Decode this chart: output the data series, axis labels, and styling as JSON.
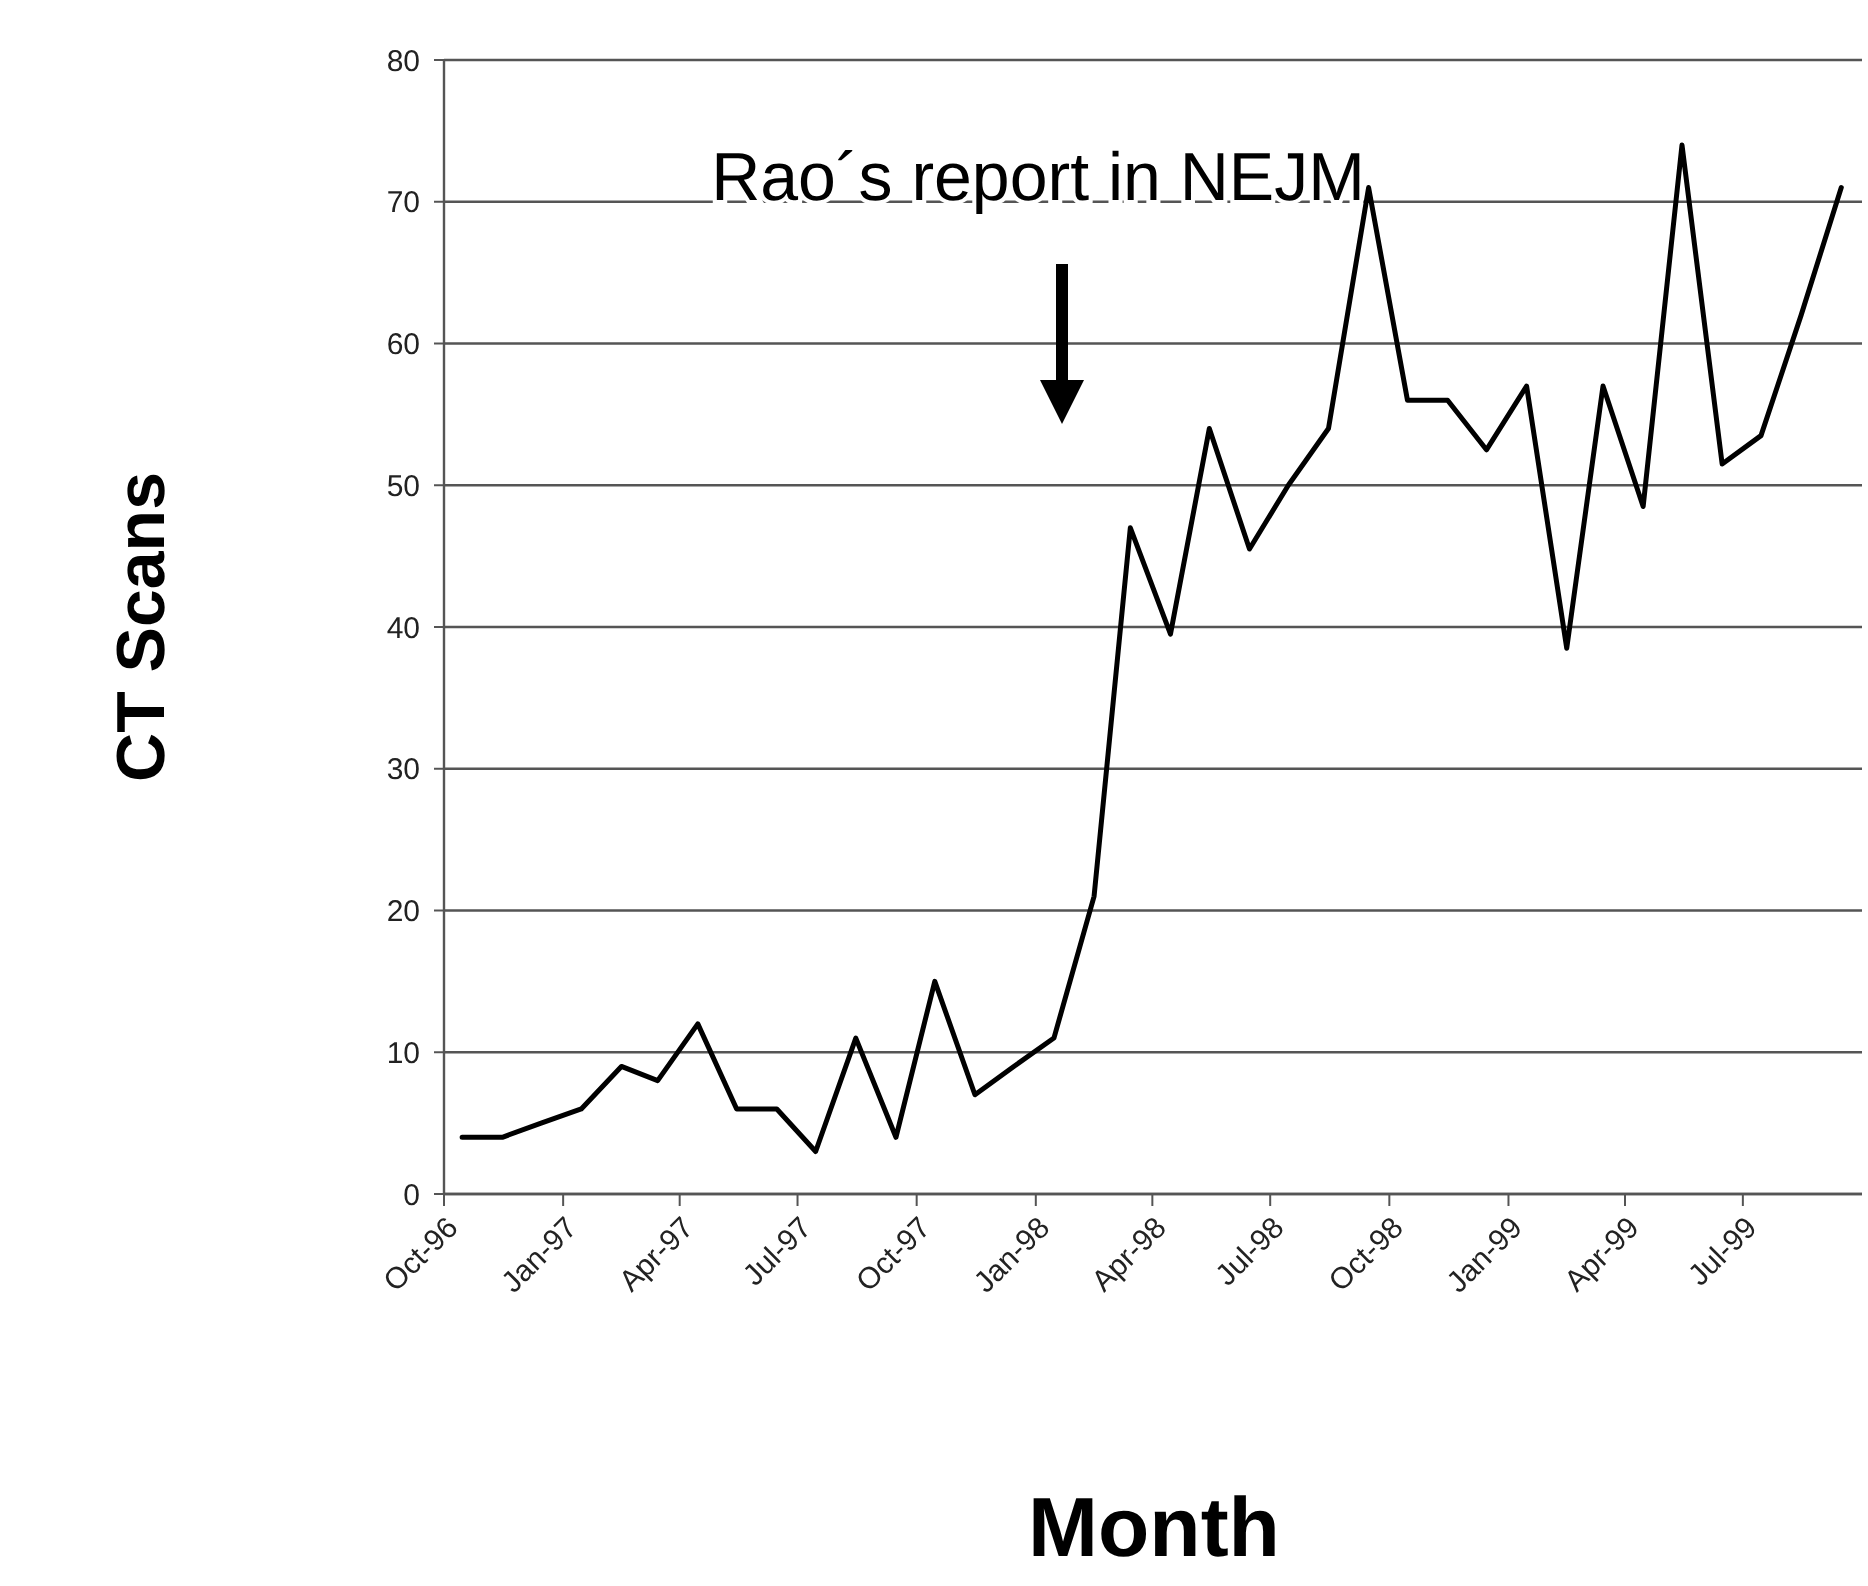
{
  "chart_data": {
    "type": "line",
    "xlabel": "Month",
    "ylabel": "CT Scans",
    "x": [
      "1996-10-15",
      "1996-11-15",
      "1996-12-15",
      "1997-01-15",
      "1997-02-15",
      "1997-03-15",
      "1997-04-15",
      "1997-05-15",
      "1997-06-15",
      "1997-07-15",
      "1997-08-15",
      "1997-09-15",
      "1997-10-15",
      "1997-11-15",
      "1997-12-15",
      "1998-01-15",
      "1998-02-15",
      "1998-03-15",
      "1998-04-15",
      "1998-05-15",
      "1998-06-15",
      "1998-07-15",
      "1998-08-15",
      "1998-09-15",
      "1998-10-15",
      "1998-11-15",
      "1998-12-15",
      "1999-01-15",
      "1999-02-15",
      "1999-03-15",
      "1999-04-15",
      "1999-05-15",
      "1999-06-15",
      "1999-07-15",
      "1999-08-15",
      "1999-09-15"
    ],
    "series": [
      {
        "color": "#000000",
        "values": [
          4,
          4,
          5,
          6,
          9,
          8,
          12,
          6,
          6,
          3,
          11,
          4,
          15,
          7,
          9,
          11,
          21,
          47,
          39.5,
          54,
          45.5,
          50,
          54,
          71,
          56,
          56,
          52.5,
          57,
          38.5,
          57,
          48.5,
          74,
          51.5,
          53.5,
          62,
          71
        ]
      }
    ],
    "xlim": [
      "1996-10-01",
      "1999-10-01"
    ],
    "xticks": [
      {
        "value": "1996-10",
        "label": "Oct-96"
      },
      {
        "value": "1997-01",
        "label": "Jan-97"
      },
      {
        "value": "1997-04",
        "label": "Apr-97"
      },
      {
        "value": "1997-07",
        "label": "Jul-97"
      },
      {
        "value": "1997-10",
        "label": "Oct-97"
      },
      {
        "value": "1998-01",
        "label": "Jan-98"
      },
      {
        "value": "1998-04",
        "label": "Apr-98"
      },
      {
        "value": "1998-07",
        "label": "Jul-98"
      },
      {
        "value": "1998-10",
        "label": "Oct-98"
      },
      {
        "value": "1999-01",
        "label": "Jan-99"
      },
      {
        "value": "1999-04",
        "label": "Apr-99"
      },
      {
        "value": "1999-07",
        "label": "Jul-99"
      }
    ],
    "ylim": [
      0,
      80
    ],
    "yticks": [
      0,
      10,
      20,
      30,
      40,
      50,
      60,
      70,
      80
    ],
    "grid": "y",
    "marker": "none",
    "line_style": "solid",
    "annotations": [
      "Rao´s report in NEJM"
    ]
  }
}
